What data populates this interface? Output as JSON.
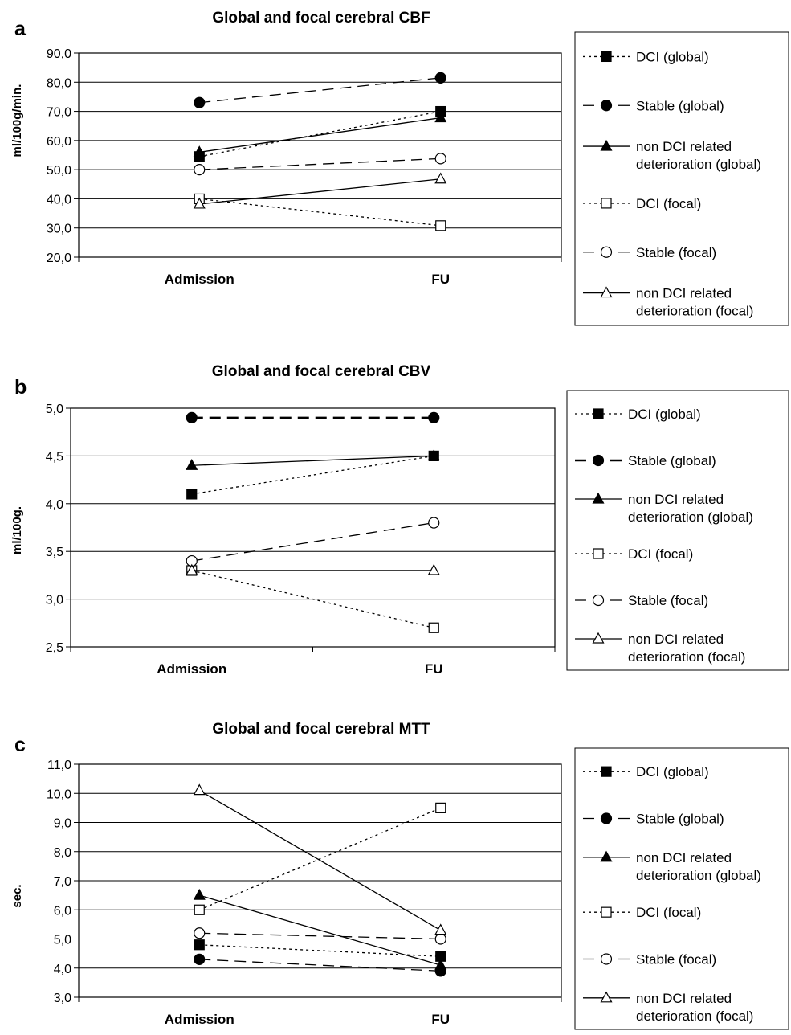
{
  "chart_data": [
    {
      "panel_label": "a",
      "title": "Global and focal cerebral CBF",
      "type": "line",
      "categories": [
        "Admission",
        "FU"
      ],
      "ylabel": "ml/100g/min.",
      "ylim": [
        20,
        90
      ],
      "ytick_step": 10,
      "yticks": [
        "20,0",
        "30,0",
        "40,0",
        "50,0",
        "60,0",
        "70,0",
        "80,0",
        "90,0"
      ],
      "grid": true,
      "legend_position": "right",
      "series": [
        {
          "name": "DCI (global)",
          "values": [
            54.5,
            70.0
          ],
          "marker": "square-filled",
          "dash": "dotted"
        },
        {
          "name": "Stable (global)",
          "values": [
            73.0,
            81.5
          ],
          "marker": "circle-filled",
          "dash": "dashed"
        },
        {
          "name": "non DCI related deterioration (global)",
          "values": [
            56.0,
            67.8
          ],
          "marker": "triangle-filled",
          "dash": "solid"
        },
        {
          "name": "DCI (focal)",
          "values": [
            40.0,
            30.8
          ],
          "marker": "square-open",
          "dash": "dotted"
        },
        {
          "name": "Stable (focal)",
          "values": [
            50.0,
            53.8
          ],
          "marker": "circle-open",
          "dash": "dashed"
        },
        {
          "name": "non DCI related deterioration (focal)",
          "values": [
            38.2,
            46.8
          ],
          "marker": "triangle-open",
          "dash": "solid"
        }
      ]
    },
    {
      "panel_label": "b",
      "title": "Global and focal cerebral CBV",
      "type": "line",
      "categories": [
        "Admission",
        "FU"
      ],
      "ylabel": "ml/100g.",
      "ylim": [
        2.5,
        5.0
      ],
      "ytick_step": 0.5,
      "yticks": [
        "2,5",
        "3,0",
        "3,5",
        "4,0",
        "4,5",
        "5,0"
      ],
      "grid": true,
      "legend_position": "right",
      "series": [
        {
          "name": "DCI (global)",
          "values": [
            4.1,
            4.5
          ],
          "marker": "square-filled",
          "dash": "dotted"
        },
        {
          "name": "Stable (global)",
          "values": [
            4.9,
            4.9
          ],
          "marker": "circle-filled",
          "dash": "dashed-bold"
        },
        {
          "name": "non DCI related deterioration (global)",
          "values": [
            4.4,
            4.5
          ],
          "marker": "triangle-filled",
          "dash": "solid"
        },
        {
          "name": "DCI (focal)",
          "values": [
            3.3,
            2.7
          ],
          "marker": "square-open",
          "dash": "dotted"
        },
        {
          "name": "Stable (focal)",
          "values": [
            3.4,
            3.8
          ],
          "marker": "circle-open",
          "dash": "dashed"
        },
        {
          "name": "non DCI related deterioration (focal)",
          "values": [
            3.3,
            3.3
          ],
          "marker": "triangle-open",
          "dash": "solid"
        }
      ]
    },
    {
      "panel_label": "c",
      "title": "Global and focal cerebral MTT",
      "type": "line",
      "categories": [
        "Admission",
        "FU"
      ],
      "ylabel": "sec.",
      "ylim": [
        3,
        11
      ],
      "ytick_step": 1,
      "yticks": [
        "3,0",
        "4,0",
        "5,0",
        "6,0",
        "7,0",
        "8,0",
        "9,0",
        "10,0",
        "11,0"
      ],
      "grid": true,
      "legend_position": "right",
      "series": [
        {
          "name": "DCI (global)",
          "values": [
            4.8,
            4.4
          ],
          "marker": "square-filled",
          "dash": "dotted"
        },
        {
          "name": "Stable (global)",
          "values": [
            4.3,
            3.9
          ],
          "marker": "circle-filled",
          "dash": "dashed"
        },
        {
          "name": "non DCI related deterioration (global)",
          "values": [
            6.5,
            4.1
          ],
          "marker": "triangle-filled",
          "dash": "solid"
        },
        {
          "name": "DCI (focal)",
          "values": [
            6.0,
            9.5
          ],
          "marker": "square-open",
          "dash": "dotted"
        },
        {
          "name": "Stable (focal)",
          "values": [
            5.2,
            5.0
          ],
          "marker": "circle-open",
          "dash": "dashed"
        },
        {
          "name": "non DCI related deterioration (focal)",
          "values": [
            10.1,
            5.3
          ],
          "marker": "triangle-open",
          "dash": "solid"
        }
      ]
    }
  ]
}
